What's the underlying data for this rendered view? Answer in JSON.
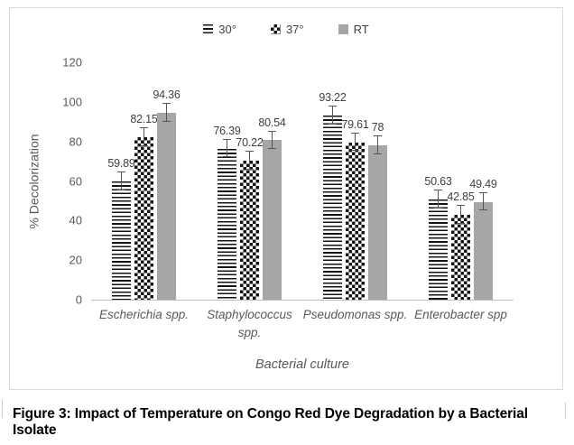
{
  "figure": {
    "caption": "Figure 3: Impact of Temperature on Congo Red Dye Degradation by a Bacterial Isolate"
  },
  "chart_data": {
    "type": "bar",
    "title": "",
    "xlabel": "Bacterial culture",
    "ylabel": "% Decolorization",
    "ylim": [
      0,
      120
    ],
    "yticks": [
      0,
      20,
      40,
      60,
      80,
      100,
      120
    ],
    "grid": false,
    "legend_position": "top-center",
    "bar_labels": true,
    "error_bar": 4.5,
    "categories": [
      "Escherichia spp.",
      "Staphylococcus spp.",
      "Pseudomonas spp.",
      "Enterobacter spp"
    ],
    "series": [
      {
        "name": "30°",
        "style": "hlines",
        "values": [
          59.89,
          76.39,
          93.22,
          50.63
        ]
      },
      {
        "name": "37°",
        "style": "checker",
        "values": [
          82.15,
          70.22,
          79.61,
          42.85
        ]
      },
      {
        "name": "RT",
        "style": "solid",
        "color": "#a6a6a6",
        "values": [
          94.36,
          80.54,
          78,
          49.49
        ]
      }
    ]
  },
  "colors": {
    "axis_text": "#595959",
    "data_label": "#404040",
    "axis_line": "#bfbfbf",
    "frame_border": "#d9d9d9",
    "error_bar": "#555555"
  }
}
